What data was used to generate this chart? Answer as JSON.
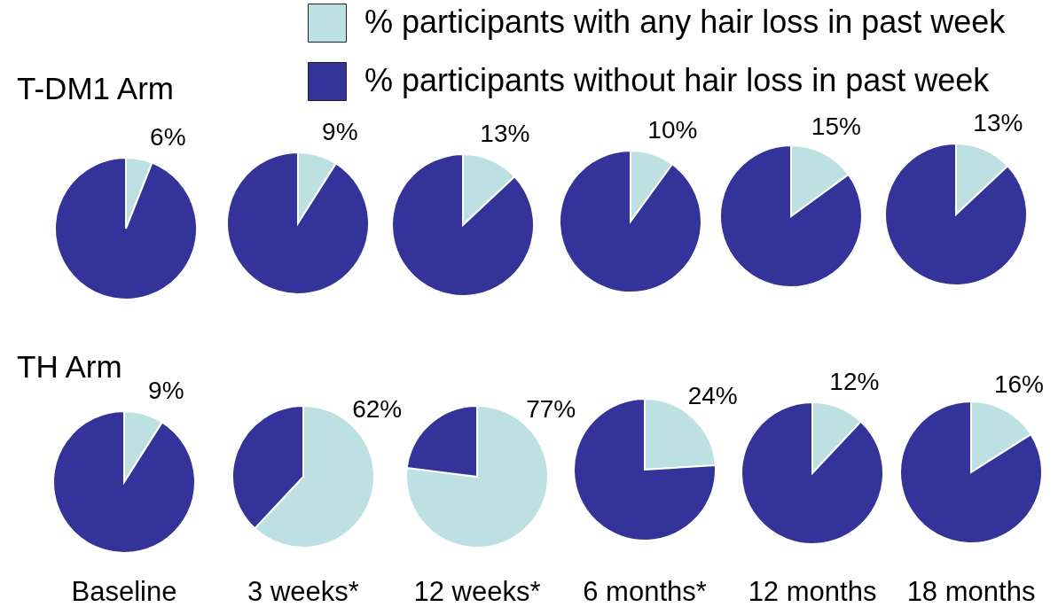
{
  "chart_data": [
    {
      "type": "pie",
      "title": "T-DM1 Arm",
      "categories": [
        "% participants with any hair loss in past week",
        "% participants without hair loss in past week"
      ],
      "values": [
        6,
        94
      ],
      "colors": [
        "#bde0e3",
        "#333399"
      ],
      "value_labels": [
        "6%",
        null
      ],
      "legend": "top right"
    },
    {
      "type": "pie",
      "categories": [
        null,
        null
      ],
      "values": [
        9,
        91
      ],
      "colors": [
        "#bde0e3",
        "#333399"
      ],
      "value_labels": [
        "9%",
        null
      ]
    },
    {
      "type": "pie",
      "categories": [
        null,
        null
      ],
      "values": [
        13,
        87
      ],
      "colors": [
        "#bde0e3",
        "#333399"
      ],
      "value_labels": [
        "13%",
        null
      ]
    },
    {
      "type": "pie",
      "categories": [
        null,
        null
      ],
      "values": [
        10,
        90
      ],
      "colors": [
        "#bde0e3",
        "#333399"
      ],
      "value_labels": [
        "10%",
        null
      ]
    },
    {
      "type": "pie",
      "categories": [
        null,
        null
      ],
      "values": [
        15,
        85
      ],
      "colors": [
        "#bde0e3",
        "#333399"
      ],
      "value_labels": [
        "15%",
        null
      ]
    },
    {
      "type": "pie",
      "categories": [
        null,
        null
      ],
      "values": [
        13,
        87
      ],
      "colors": [
        "#bde0e3",
        "#333399"
      ],
      "value_labels": [
        "13%",
        null
      ]
    },
    {
      "type": "pie",
      "title": "TH Arm",
      "xlabel": "Baseline",
      "categories": [
        null,
        null
      ],
      "values": [
        9,
        91
      ],
      "colors": [
        "#bde0e3",
        "#333399"
      ],
      "value_labels": [
        "9%",
        null
      ]
    },
    {
      "type": "pie",
      "xlabel": "3 weeks*",
      "categories": [
        null,
        null
      ],
      "values": [
        62,
        38
      ],
      "colors": [
        "#bde0e3",
        "#333399"
      ],
      "value_labels": [
        "62%",
        null
      ]
    },
    {
      "type": "pie",
      "xlabel": "12 weeks*",
      "categories": [
        null,
        null
      ],
      "values": [
        77,
        23
      ],
      "colors": [
        "#bde0e3",
        "#333399"
      ],
      "value_labels": [
        "77%",
        null
      ]
    },
    {
      "type": "pie",
      "xlabel": "6 months*",
      "categories": [
        null,
        null
      ],
      "values": [
        24,
        76
      ],
      "colors": [
        "#bde0e3",
        "#333399"
      ],
      "value_labels": [
        "24%",
        null
      ]
    },
    {
      "type": "pie",
      "xlabel": "12 months",
      "categories": [
        null,
        null
      ],
      "values": [
        12,
        88
      ],
      "colors": [
        "#bde0e3",
        "#333399"
      ],
      "value_labels": [
        "12%",
        null
      ]
    },
    {
      "type": "pie",
      "xlabel": "18 months",
      "categories": [
        null,
        null
      ],
      "values": [
        16,
        84
      ],
      "colors": [
        "#bde0e3",
        "#333399"
      ],
      "value_labels": [
        "16%",
        null
      ]
    }
  ]
}
